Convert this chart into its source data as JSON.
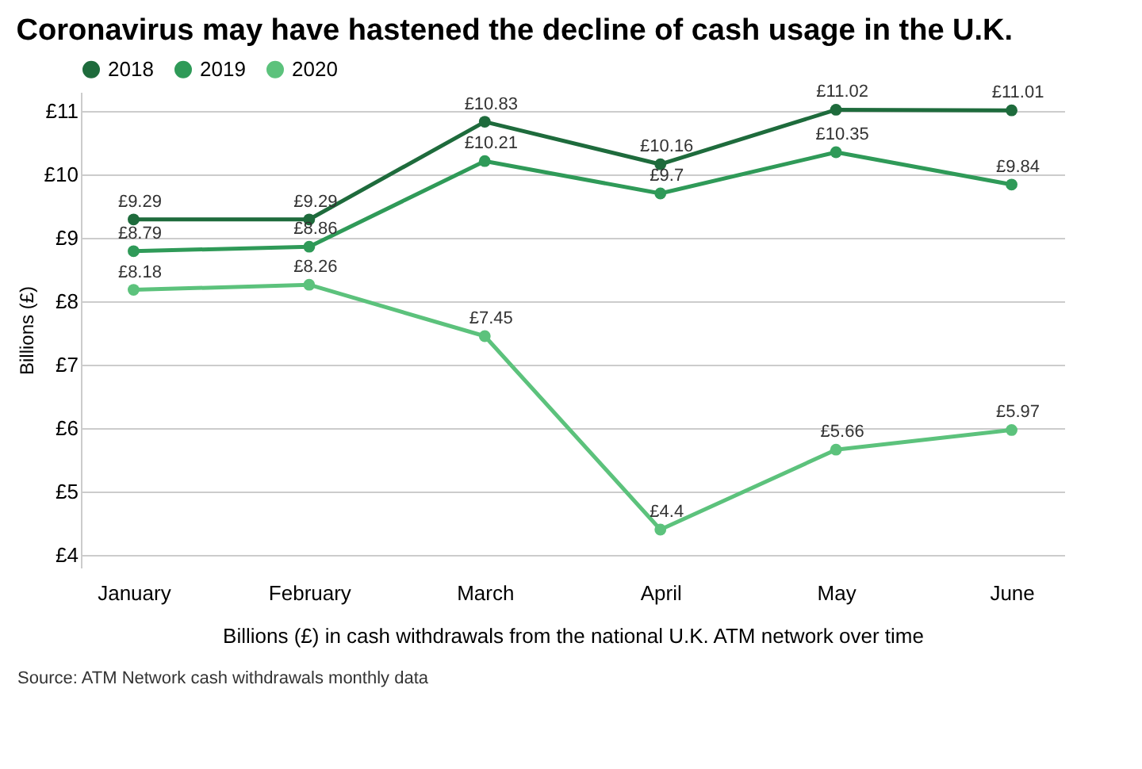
{
  "chart_data": {
    "type": "line",
    "title": "Coronavirus may have hastened the decline of cash usage in the U.K.",
    "xlabel": "Billions (£) in cash withdrawals from the national U.K. ATM network over time",
    "ylabel": "Billions (£)",
    "categories": [
      "January",
      "February",
      "March",
      "April",
      "May",
      "June"
    ],
    "series": [
      {
        "name": "2018",
        "color": "#1e6b3c",
        "values": [
          9.29,
          9.29,
          10.83,
          10.16,
          11.02,
          11.01
        ],
        "value_labels": [
          "£9.29",
          "£9.29",
          "£10.83",
          "£10.16",
          "£11.02",
          "£11.01"
        ]
      },
      {
        "name": "2019",
        "color": "#2f9a58",
        "values": [
          8.79,
          8.86,
          10.21,
          9.7,
          10.35,
          9.84
        ],
        "value_labels": [
          "£8.79",
          "£8.86",
          "£10.21",
          "£9.7",
          "£10.35",
          "£9.84"
        ]
      },
      {
        "name": "2020",
        "color": "#5cc27c",
        "values": [
          8.18,
          8.26,
          7.45,
          4.4,
          5.66,
          5.97
        ],
        "value_labels": [
          "£8.18",
          "£8.26",
          "£7.45",
          "£4.4",
          "£5.66",
          "£5.97"
        ]
      }
    ],
    "ylim": [
      3.8,
      11.3
    ],
    "yticks": [
      {
        "value": 4,
        "label": "£4"
      },
      {
        "value": 5,
        "label": "£5"
      },
      {
        "value": 6,
        "label": "£6"
      },
      {
        "value": 7,
        "label": "£7"
      },
      {
        "value": 8,
        "label": "£8"
      },
      {
        "value": 9,
        "label": "£9"
      },
      {
        "value": 10,
        "label": "£10"
      },
      {
        "value": 11,
        "label": "£11"
      }
    ],
    "grid": "y",
    "legend": "top",
    "marker": "circle",
    "line_style": "solid",
    "annotations": [
      "Source: ATM Network cash withdrawals monthly data"
    ]
  }
}
